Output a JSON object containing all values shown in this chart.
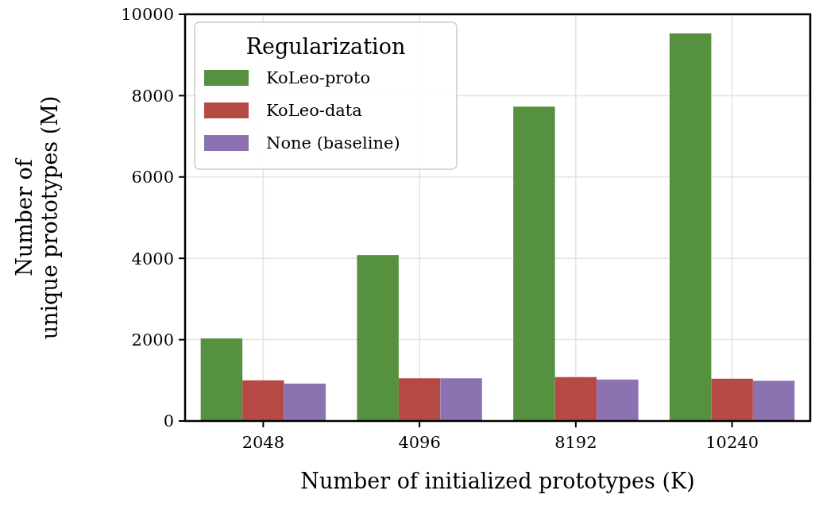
{
  "chart_data": {
    "type": "bar",
    "xlabel": "Number of initialized prototypes (K)",
    "ylabel": "Number of\nunique prototypes (M)",
    "legend_title": "Regularization",
    "categories": [
      "2048",
      "4096",
      "8192",
      "10240"
    ],
    "series": [
      {
        "name": "KoLeo-proto",
        "color": "#55913f",
        "values": [
          2030,
          4080,
          7730,
          9530
        ]
      },
      {
        "name": "KoLeo-data",
        "color": "#b54a45",
        "values": [
          1000,
          1050,
          1080,
          1040
        ]
      },
      {
        "name": "None (baseline)",
        "color": "#8c72b0",
        "values": [
          920,
          1050,
          1020,
          990
        ]
      }
    ],
    "ylim": [
      0,
      10000
    ],
    "yticks": [
      0,
      2000,
      4000,
      6000,
      8000,
      10000
    ],
    "grid": true,
    "legend": "top left"
  }
}
